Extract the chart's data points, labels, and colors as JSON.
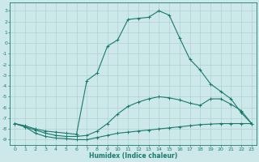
{
  "xlabel": "Humidex (Indice chaleur)",
  "background_color": "#cce8e8",
  "grid_color": "#b0d0d0",
  "line_color": "#1a7a6e",
  "xlim": [
    -0.5,
    23.5
  ],
  "ylim": [
    -9.5,
    3.8
  ],
  "xtick_labels": [
    "0",
    "1",
    "2",
    "3",
    "4",
    "5",
    "6",
    "7",
    "8",
    "9",
    "10",
    "11",
    "12",
    "13",
    "14",
    "15",
    "16",
    "17",
    "18",
    "19",
    "20",
    "21",
    "22",
    "23"
  ],
  "ytick_labels": [
    "3",
    "2",
    "1",
    "0",
    "-1",
    "-2",
    "-3",
    "-4",
    "-5",
    "-6",
    "-7",
    "-8",
    "-9"
  ],
  "ytick_vals": [
    3,
    2,
    1,
    0,
    -1,
    -2,
    -3,
    -4,
    -5,
    -6,
    -7,
    -8,
    -9
  ],
  "xtick_vals": [
    0,
    1,
    2,
    3,
    4,
    5,
    6,
    7,
    8,
    9,
    10,
    11,
    12,
    13,
    14,
    15,
    16,
    17,
    18,
    19,
    20,
    21,
    22,
    23
  ],
  "line1_x": [
    0,
    1,
    2,
    3,
    4,
    5,
    6,
    7,
    8,
    9,
    10,
    11,
    12,
    13,
    14,
    15,
    16,
    17,
    18,
    19,
    20,
    21,
    22,
    23
  ],
  "line1_y": [
    -7.5,
    -7.8,
    -8.4,
    -8.7,
    -8.85,
    -8.9,
    -9.0,
    -9.0,
    -8.8,
    -8.6,
    -8.4,
    -8.3,
    -8.2,
    -8.1,
    -8.0,
    -7.9,
    -7.8,
    -7.7,
    -7.6,
    -7.55,
    -7.5,
    -7.5,
    -7.5,
    -7.5
  ],
  "line2_x": [
    0,
    1,
    2,
    3,
    4,
    5,
    6,
    7,
    8,
    9,
    10,
    11,
    12,
    13,
    14,
    15,
    16,
    17,
    18,
    19,
    20,
    21,
    22,
    23
  ],
  "line2_y": [
    -7.5,
    -7.8,
    -8.1,
    -8.4,
    -8.6,
    -8.7,
    -8.7,
    -8.6,
    -8.2,
    -7.5,
    -6.6,
    -5.9,
    -5.5,
    -5.2,
    -5.0,
    -5.1,
    -5.3,
    -5.6,
    -5.8,
    -5.2,
    -5.2,
    -5.7,
    -6.3,
    -7.5
  ],
  "line3_x": [
    0,
    1,
    2,
    3,
    4,
    5,
    6,
    7,
    8,
    9,
    10,
    11,
    12,
    13,
    14,
    15,
    16,
    17,
    18,
    19,
    20,
    21,
    22,
    23
  ],
  "line3_y": [
    -7.5,
    -7.7,
    -8.0,
    -8.2,
    -8.3,
    -8.4,
    -8.5,
    -3.5,
    -2.8,
    -0.3,
    0.3,
    2.2,
    2.3,
    2.4,
    3.0,
    2.6,
    0.5,
    -1.5,
    -2.5,
    -3.8,
    -4.5,
    -5.2,
    -6.5,
    -7.5
  ]
}
